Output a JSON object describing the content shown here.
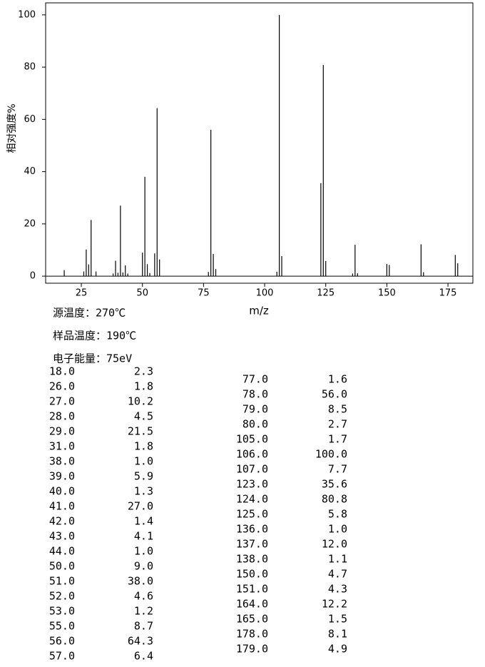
{
  "chart_data": {
    "type": "bar",
    "xlabel": "m/z",
    "ylabel": "相对强度%",
    "color": "#000000",
    "x": [
      18,
      26,
      27,
      28,
      29,
      31,
      38,
      39,
      40,
      41,
      42,
      43,
      44,
      50,
      51,
      52,
      53,
      55,
      56,
      57,
      77,
      78,
      79,
      80,
      105,
      106,
      107,
      123,
      124,
      125,
      136,
      137,
      138,
      150,
      151,
      164,
      165,
      178,
      179
    ],
    "values": [
      2.3,
      1.8,
      10.2,
      4.5,
      21.5,
      1.8,
      1.0,
      5.9,
      1.3,
      27.0,
      1.4,
      4.1,
      1.0,
      9.0,
      38.0,
      4.6,
      1.2,
      8.7,
      64.3,
      6.4,
      1.6,
      56.0,
      8.5,
      2.7,
      1.7,
      100.0,
      7.7,
      35.6,
      80.8,
      5.8,
      1.0,
      12.0,
      1.1,
      4.7,
      4.3,
      12.2,
      1.5,
      8.1,
      4.9
    ],
    "xlim": [
      10.4,
      185.2
    ],
    "ylim": [
      -2.7,
      104.6
    ],
    "xticks": [
      25,
      50,
      75,
      100,
      125,
      150,
      175
    ],
    "yticks": [
      0,
      20,
      40,
      60,
      80,
      100
    ]
  },
  "conditions": [
    "源温度：270℃",
    "样品温度：190℃",
    "电子能量：75eV"
  ],
  "table": {
    "left": [
      [
        "18.0",
        "2.3"
      ],
      [
        "26.0",
        "1.8"
      ],
      [
        "27.0",
        "10.2"
      ],
      [
        "28.0",
        "4.5"
      ],
      [
        "29.0",
        "21.5"
      ],
      [
        "31.0",
        "1.8"
      ],
      [
        "38.0",
        "1.0"
      ],
      [
        "39.0",
        "5.9"
      ],
      [
        "40.0",
        "1.3"
      ],
      [
        "41.0",
        "27.0"
      ],
      [
        "42.0",
        "1.4"
      ],
      [
        "43.0",
        "4.1"
      ],
      [
        "44.0",
        "1.0"
      ],
      [
        "50.0",
        "9.0"
      ],
      [
        "51.0",
        "38.0"
      ],
      [
        "52.0",
        "4.6"
      ],
      [
        "53.0",
        "1.2"
      ],
      [
        "55.0",
        "8.7"
      ],
      [
        "56.0",
        "64.3"
      ],
      [
        "57.0",
        "6.4"
      ]
    ],
    "right": [
      [
        "77.0",
        "1.6"
      ],
      [
        "78.0",
        "56.0"
      ],
      [
        "79.0",
        "8.5"
      ],
      [
        "80.0",
        "2.7"
      ],
      [
        "105.0",
        "1.7"
      ],
      [
        "106.0",
        "100.0"
      ],
      [
        "107.0",
        "7.7"
      ],
      [
        "123.0",
        "35.6"
      ],
      [
        "124.0",
        "80.8"
      ],
      [
        "125.0",
        "5.8"
      ],
      [
        "136.0",
        "1.0"
      ],
      [
        "137.0",
        "12.0"
      ],
      [
        "138.0",
        "1.1"
      ],
      [
        "150.0",
        "4.7"
      ],
      [
        "151.0",
        "4.3"
      ],
      [
        "164.0",
        "12.2"
      ],
      [
        "165.0",
        "1.5"
      ],
      [
        "178.0",
        "8.1"
      ],
      [
        "179.0",
        "4.9"
      ]
    ]
  }
}
